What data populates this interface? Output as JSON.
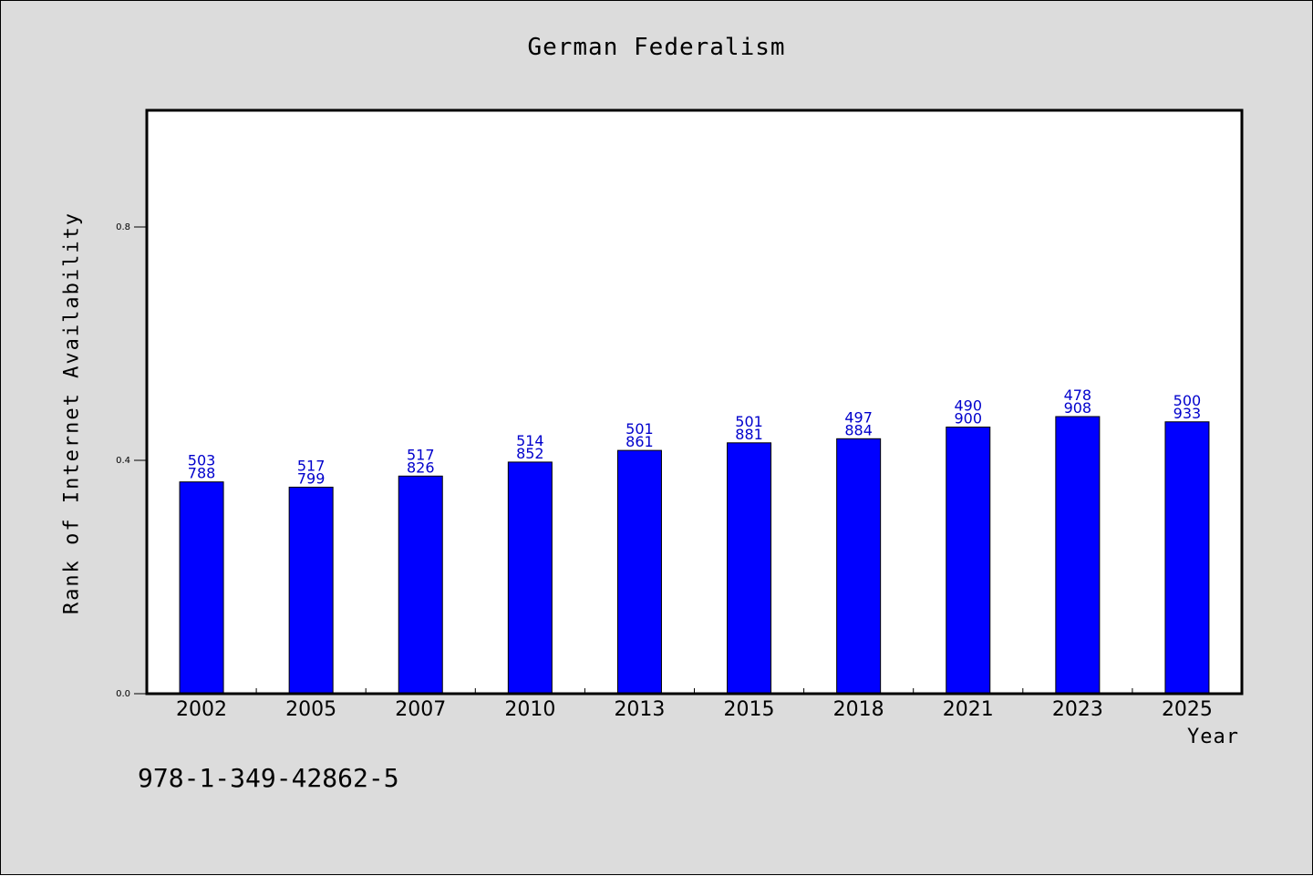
{
  "chart_data": {
    "type": "bar",
    "title": "German Federalism",
    "xlabel": "Year",
    "ylabel": "Rank of Internet Availability",
    "categories": [
      "2002",
      "2005",
      "2007",
      "2010",
      "2013",
      "2015",
      "2018",
      "2021",
      "2023",
      "2025"
    ],
    "values": [
      0.363,
      0.354,
      0.373,
      0.397,
      0.417,
      0.43,
      0.437,
      0.457,
      0.475,
      0.466
    ],
    "data_labels": [
      [
        "503",
        "788"
      ],
      [
        "517",
        "799"
      ],
      [
        "517",
        "826"
      ],
      [
        "514",
        "852"
      ],
      [
        "501",
        "861"
      ],
      [
        "501",
        "881"
      ],
      [
        "497",
        "884"
      ],
      [
        "490",
        "900"
      ],
      [
        "478",
        "908"
      ],
      [
        "500",
        "933"
      ]
    ],
    "yticks": [
      "0.0",
      "0.4",
      "0.8"
    ],
    "ylim": [
      0,
      1.0
    ],
    "grid": false,
    "bar_color": "#0000ff",
    "label_color": "#0000cc",
    "background": "#dcdcdc",
    "plot_background": "#ffffff"
  },
  "footnote": "978-1-349-42862-5"
}
